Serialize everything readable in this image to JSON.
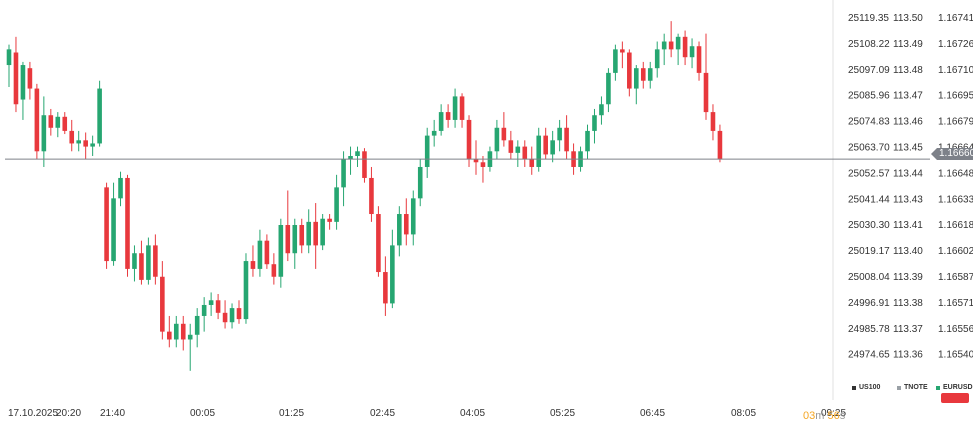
{
  "chart_data": {
    "type": "candlestick",
    "y_axes": [
      {
        "name": "US100",
        "ticks": [
          "25119.35",
          "25108.22",
          "25097.09",
          "25085.96",
          "25074.83",
          "25063.70",
          "25052.57",
          "25041.44",
          "25030.30",
          "25019.17",
          "25008.04",
          "24996.91",
          "24985.78",
          "24974.65"
        ]
      },
      {
        "name": "TNOTE",
        "ticks": [
          "113.50",
          "113.49",
          "113.48",
          "113.47",
          "113.46",
          "113.45",
          "113.44",
          "113.43",
          "113.41",
          "113.40",
          "113.39",
          "113.38",
          "113.37",
          "113.36"
        ]
      },
      {
        "name": "EURUSD",
        "ticks": [
          "1.16741",
          "1.16726",
          "1.16710",
          "1.16695",
          "1.16679",
          "1.16664",
          "1.16648",
          "1.16633",
          "1.16618",
          "1.16602",
          "1.16587",
          "1.16571",
          "1.16556",
          "1.16540"
        ]
      }
    ],
    "x_ticks": [
      "17.10.2025",
      "20:20",
      "21:40",
      "00:05",
      "01:25",
      "02:45",
      "04:05",
      "05:25",
      "06:45",
      "08:05",
      "09:25"
    ],
    "y_range": [
      1.1653,
      1.1675
    ],
    "current_price": "1.16660",
    "up_color": "#26a671",
    "down_color": "#e8383d",
    "candles": [
      [
        1.1672,
        1.16733,
        1.16706,
        1.1673
      ],
      [
        1.16728,
        1.16738,
        1.1669,
        1.16695
      ],
      [
        1.16698,
        1.16722,
        1.16685,
        1.1672
      ],
      [
        1.16718,
        1.16722,
        1.16698,
        1.16705
      ],
      [
        1.16705,
        1.16708,
        1.1666,
        1.16665
      ],
      [
        1.16665,
        1.167,
        1.16655,
        1.16688
      ],
      [
        1.16688,
        1.16692,
        1.16675,
        1.1668
      ],
      [
        1.1668,
        1.1669,
        1.16674,
        1.16687
      ],
      [
        1.16687,
        1.1669,
        1.16676,
        1.16678
      ],
      [
        1.16678,
        1.16685,
        1.16665,
        1.1667
      ],
      [
        1.1667,
        1.16678,
        1.16665,
        1.16672
      ],
      [
        1.16672,
        1.16677,
        1.1666,
        1.16668
      ],
      [
        1.16668,
        1.16675,
        1.16662,
        1.1667
      ],
      [
        1.1667,
        1.1671,
        1.16668,
        1.16705
      ],
      [
        1.16642,
        1.16645,
        1.1659,
        1.16595
      ],
      [
        1.16595,
        1.16645,
        1.16592,
        1.16635
      ],
      [
        1.16635,
        1.16652,
        1.1663,
        1.16648
      ],
      [
        1.16648,
        1.1665,
        1.16585,
        1.1659
      ],
      [
        1.1659,
        1.16605,
        1.16582,
        1.166
      ],
      [
        1.166,
        1.16608,
        1.1658,
        1.16583
      ],
      [
        1.16583,
        1.1661,
        1.1658,
        1.16605
      ],
      [
        1.16605,
        1.16612,
        1.1658,
        1.16585
      ],
      [
        1.16585,
        1.16595,
        1.16545,
        1.1655
      ],
      [
        1.1655,
        1.1656,
        1.1654,
        1.16545
      ],
      [
        1.16545,
        1.1656,
        1.1654,
        1.16555
      ],
      [
        1.16555,
        1.1656,
        1.16538,
        1.16545
      ],
      [
        1.16545,
        1.16555,
        1.16525,
        1.16548
      ],
      [
        1.16548,
        1.16565,
        1.1654,
        1.1656
      ],
      [
        1.1656,
        1.16572,
        1.1655,
        1.16567
      ],
      [
        1.16567,
        1.16575,
        1.1656,
        1.1657
      ],
      [
        1.1657,
        1.16574,
        1.16558,
        1.16562
      ],
      [
        1.16562,
        1.1657,
        1.16552,
        1.16556
      ],
      [
        1.16556,
        1.16568,
        1.16552,
        1.16565
      ],
      [
        1.16565,
        1.1657,
        1.16555,
        1.16558
      ],
      [
        1.16558,
        1.166,
        1.16555,
        1.16595
      ],
      [
        1.16595,
        1.16605,
        1.16585,
        1.1659
      ],
      [
        1.1659,
        1.16615,
        1.16585,
        1.16608
      ],
      [
        1.16608,
        1.16612,
        1.1659,
        1.16593
      ],
      [
        1.16593,
        1.166,
        1.1658,
        1.16585
      ],
      [
        1.16585,
        1.16622,
        1.16578,
        1.16618
      ],
      [
        1.16618,
        1.1664,
        1.16595,
        1.166
      ],
      [
        1.166,
        1.16622,
        1.1659,
        1.16618
      ],
      [
        1.16618,
        1.16622,
        1.166,
        1.16605
      ],
      [
        1.16605,
        1.16628,
        1.166,
        1.1662
      ],
      [
        1.1662,
        1.16632,
        1.1659,
        1.16605
      ],
      [
        1.16605,
        1.16625,
        1.16602,
        1.16622
      ],
      [
        1.16622,
        1.16625,
        1.16615,
        1.1662
      ],
      [
        1.1662,
        1.1665,
        1.16615,
        1.16642
      ],
      [
        1.16642,
        1.16665,
        1.1663,
        1.1666
      ],
      [
        1.1666,
        1.16668,
        1.1665,
        1.16662
      ],
      [
        1.16662,
        1.16668,
        1.16655,
        1.16665
      ],
      [
        1.16665,
        1.16667,
        1.16645,
        1.16648
      ],
      [
        1.16648,
        1.16655,
        1.1662,
        1.16625
      ],
      [
        1.16625,
        1.1663,
        1.16585,
        1.16588
      ],
      [
        1.16588,
        1.16598,
        1.1656,
        1.16568
      ],
      [
        1.16568,
        1.16615,
        1.16565,
        1.16605
      ],
      [
        1.16605,
        1.1663,
        1.16598,
        1.16625
      ],
      [
        1.16625,
        1.16635,
        1.16605,
        1.16612
      ],
      [
        1.16612,
        1.1664,
        1.16605,
        1.16635
      ],
      [
        1.16635,
        1.1666,
        1.1663,
        1.16655
      ],
      [
        1.16655,
        1.1668,
        1.16648,
        1.16675
      ],
      [
        1.16675,
        1.16685,
        1.16668,
        1.16678
      ],
      [
        1.16678,
        1.16695,
        1.16675,
        1.1669
      ],
      [
        1.1669,
        1.16695,
        1.1668,
        1.16685
      ],
      [
        1.16685,
        1.16705,
        1.1668,
        1.167
      ],
      [
        1.167,
        1.16702,
        1.1668,
        1.16685
      ],
      [
        1.16685,
        1.16688,
        1.16655,
        1.1666
      ],
      [
        1.1666,
        1.16672,
        1.1665,
        1.16658
      ],
      [
        1.16658,
        1.16662,
        1.16645,
        1.16655
      ],
      [
        1.16655,
        1.16668,
        1.16652,
        1.16665
      ],
      [
        1.16665,
        1.16685,
        1.1666,
        1.1668
      ],
      [
        1.1668,
        1.1669,
        1.16668,
        1.16672
      ],
      [
        1.16672,
        1.16678,
        1.1666,
        1.16664
      ],
      [
        1.16664,
        1.16672,
        1.16655,
        1.16668
      ],
      [
        1.16668,
        1.16672,
        1.16655,
        1.1666
      ],
      [
        1.1666,
        1.16668,
        1.1665,
        1.16655
      ],
      [
        1.16655,
        1.1668,
        1.16652,
        1.16675
      ],
      [
        1.16675,
        1.1668,
        1.1666,
        1.16663
      ],
      [
        1.16663,
        1.16678,
        1.16658,
        1.16672
      ],
      [
        1.16672,
        1.16685,
        1.16665,
        1.1668
      ],
      [
        1.1668,
        1.16688,
        1.1666,
        1.16665
      ],
      [
        1.16665,
        1.1667,
        1.1665,
        1.16655
      ],
      [
        1.16655,
        1.16668,
        1.16652,
        1.16665
      ],
      [
        1.16665,
        1.16682,
        1.1666,
        1.16678
      ],
      [
        1.16678,
        1.16692,
        1.1667,
        1.16688
      ],
      [
        1.16688,
        1.167,
        1.16682,
        1.16695
      ],
      [
        1.16695,
        1.16718,
        1.1669,
        1.16715
      ],
      [
        1.16715,
        1.16733,
        1.1671,
        1.1673
      ],
      [
        1.1673,
        1.16735,
        1.16718,
        1.16728
      ],
      [
        1.16728,
        1.1673,
        1.167,
        1.16705
      ],
      [
        1.16705,
        1.1672,
        1.16695,
        1.16718
      ],
      [
        1.16718,
        1.16722,
        1.16705,
        1.1671
      ],
      [
        1.1671,
        1.16722,
        1.16705,
        1.16718
      ],
      [
        1.16718,
        1.16735,
        1.16712,
        1.1673
      ],
      [
        1.1673,
        1.1674,
        1.1672,
        1.16735
      ],
      [
        1.16735,
        1.16748,
        1.16725,
        1.1673
      ],
      [
        1.1673,
        1.1674,
        1.1672,
        1.16738
      ],
      [
        1.16738,
        1.16742,
        1.1672,
        1.16725
      ],
      [
        1.16725,
        1.16737,
        1.16718,
        1.16732
      ],
      [
        1.16732,
        1.16735,
        1.1671,
        1.16715
      ],
      [
        1.16715,
        1.1674,
        1.16685,
        1.1669
      ],
      [
        1.1669,
        1.16695,
        1.16672,
        1.16678
      ],
      [
        1.16678,
        1.16682,
        1.16658,
        1.1666
      ]
    ]
  },
  "countdown": {
    "minutes": "03",
    "m_unit": "m",
    "seconds": "56",
    "s_unit": "s"
  },
  "legend": [
    {
      "label": "US100",
      "color": "#333333"
    },
    {
      "label": "TNOTE",
      "color": "#9aa0a6"
    },
    {
      "label": "EURUSD",
      "color": "#26a671"
    }
  ]
}
